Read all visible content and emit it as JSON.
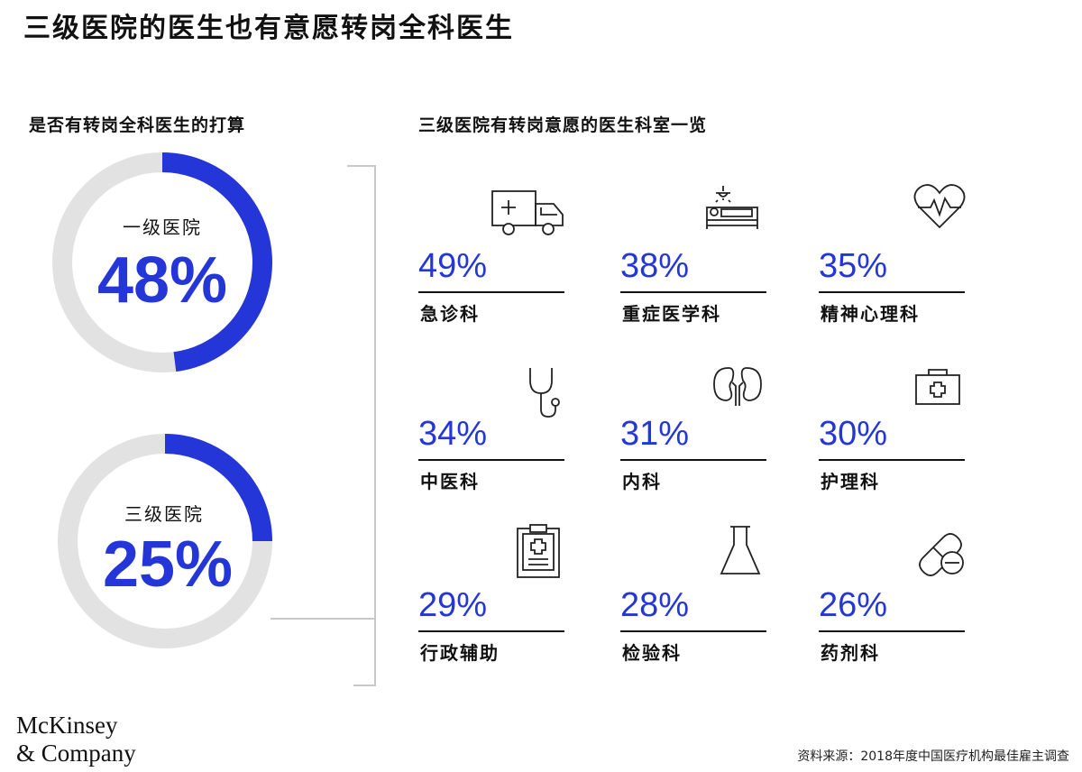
{
  "title": "三级医院的医生也有意愿转岗全科医生",
  "left_subtitle": "是否有转岗全科医生的打算",
  "right_subtitle": "三级医院有转岗意愿的医生科室一览",
  "colors": {
    "accent": "#2436d8",
    "track": "#e2e2e2",
    "bracket": "#c8c8c8"
  },
  "chart_data": [
    {
      "type": "pie",
      "title": "是否有转岗全科医生的打算",
      "series": [
        {
          "name": "一级医院",
          "value": 48,
          "label": "48%"
        },
        {
          "name": "三级医院",
          "value": 25,
          "label": "25%"
        }
      ]
    },
    {
      "type": "table",
      "title": "三级医院有转岗意愿的医生科室一览",
      "categories": [
        "急诊科",
        "重症医学科",
        "精神心理科",
        "中医科",
        "内科",
        "护理科",
        "行政辅助",
        "检验科",
        "药剂科"
      ],
      "values": [
        49,
        38,
        35,
        34,
        31,
        30,
        29,
        28,
        26
      ],
      "labels": [
        "49%",
        "38%",
        "35%",
        "34%",
        "31%",
        "30%",
        "29%",
        "28%",
        "26%"
      ],
      "icons": [
        "ambulance-icon",
        "patient-bed-icon",
        "heart-pulse-icon",
        "stethoscope-icon",
        "kidneys-icon",
        "first-aid-kit-icon",
        "clipboard-icon",
        "lab-flask-icon",
        "pills-icon"
      ]
    }
  ],
  "logo": {
    "line1": "McKinsey",
    "line2": "& Company"
  },
  "source": "资料来源：2018年度中国医疗机构最佳雇主调查"
}
